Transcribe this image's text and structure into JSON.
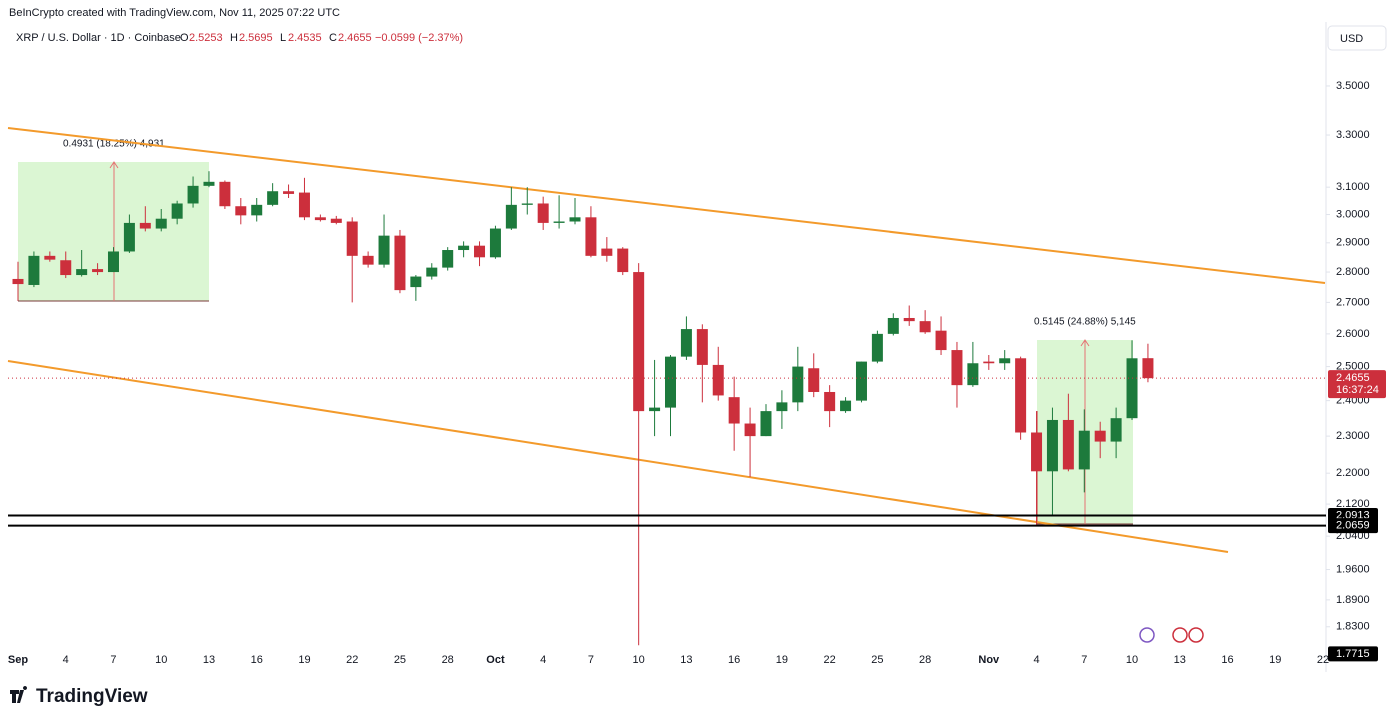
{
  "credit": "BeInCrypto created with TradingView.com, Nov 11, 2025 07:22 UTC",
  "brand": "TradingView",
  "chart_data": {
    "type": "candlestick",
    "title": "XRP / U.S. Dollar · 1D · Coinbase",
    "ohlc_prefixes": [
      "O",
      "H",
      "L",
      "C"
    ],
    "change_label": "−0.0599 (−2.37%)",
    "currency": "USD",
    "countdown": "16:37:24",
    "categories": [
      "Sep",
      null,
      null,
      "4",
      null,
      null,
      "7",
      null,
      null,
      "10",
      null,
      null,
      "13",
      null,
      null,
      "16",
      null,
      null,
      "19",
      null,
      null,
      "22",
      null,
      null,
      "25",
      null,
      null,
      "28",
      null,
      null,
      "Oct",
      null,
      null,
      "4",
      null,
      null,
      "7",
      null,
      null,
      "10",
      null,
      null,
      "13",
      null,
      null,
      "16",
      null,
      null,
      "19",
      null,
      null,
      "22",
      null,
      null,
      "25",
      null,
      null,
      "28",
      null,
      null,
      null,
      "Nov",
      null,
      null,
      "4",
      null,
      null,
      "7",
      null,
      null,
      "10",
      null,
      null,
      "13",
      null,
      null,
      "16",
      null,
      null,
      "19",
      null,
      null,
      "22"
    ],
    "open": [
      2.777,
      2.757,
      2.855,
      2.84,
      2.79,
      2.81,
      2.8,
      2.87,
      2.97,
      2.95,
      2.985,
      3.04,
      3.105,
      3.12,
      3.03,
      2.997,
      3.035,
      3.085,
      3.08,
      2.99,
      2.985,
      2.975,
      2.855,
      2.825,
      2.925,
      2.75,
      2.785,
      2.815,
      2.875,
      2.89,
      2.85,
      2.95,
      3.035,
      3.04,
      2.97,
      2.975,
      2.99,
      2.88,
      2.88,
      2.8,
      2.37,
      2.38,
      2.53,
      2.615,
      2.505,
      2.41,
      2.335,
      2.3,
      2.37,
      2.395,
      2.495,
      2.425,
      2.37,
      2.4,
      2.515,
      2.6,
      2.65,
      2.64,
      2.61,
      2.55,
      2.445,
      2.515,
      2.51,
      2.525,
      2.31,
      2.205,
      2.345,
      2.21,
      2.315,
      2.285,
      2.35,
      2.5253,
      null,
      null,
      null,
      null,
      null,
      null,
      null,
      null,
      null,
      null,
      null
    ],
    "high": [
      2.835,
      2.87,
      2.87,
      2.87,
      2.875,
      2.83,
      2.885,
      3.0,
      3.03,
      3.02,
      3.05,
      3.14,
      3.16,
      3.125,
      3.06,
      3.06,
      3.115,
      3.11,
      3.135,
      3.0,
      2.995,
      2.99,
      2.87,
      3.0,
      2.945,
      2.79,
      2.83,
      2.885,
      2.905,
      2.905,
      2.96,
      3.1,
      3.1,
      3.065,
      3.07,
      3.06,
      3.03,
      2.92,
      2.885,
      2.83,
      2.52,
      2.535,
      2.655,
      2.63,
      2.56,
      2.47,
      2.38,
      2.39,
      2.43,
      2.56,
      2.54,
      2.445,
      2.41,
      2.515,
      2.61,
      2.665,
      2.69,
      2.675,
      2.655,
      2.575,
      2.575,
      2.535,
      2.55,
      2.53,
      2.37,
      2.38,
      2.42,
      2.375,
      2.34,
      2.38,
      2.58,
      2.5695,
      null,
      null,
      null,
      null,
      null,
      null,
      null,
      null,
      null,
      null,
      null
    ],
    "low": [
      2.715,
      2.75,
      2.835,
      2.78,
      2.785,
      2.79,
      2.8,
      2.865,
      2.94,
      2.94,
      2.965,
      3.025,
      3.1,
      3.02,
      2.965,
      2.975,
      3.03,
      3.06,
      2.98,
      2.975,
      2.965,
      2.7,
      2.815,
      2.815,
      2.73,
      2.705,
      2.775,
      2.805,
      2.85,
      2.82,
      2.845,
      2.945,
      3.0,
      2.945,
      2.95,
      2.965,
      2.85,
      2.835,
      2.79,
      1.79,
      2.3,
      2.3,
      2.52,
      2.395,
      2.4,
      2.26,
      2.19,
      2.3,
      2.32,
      2.37,
      2.41,
      2.325,
      2.365,
      2.395,
      2.51,
      2.595,
      2.625,
      2.6,
      2.535,
      2.38,
      2.44,
      2.49,
      2.49,
      2.29,
      2.066,
      2.09,
      2.205,
      2.15,
      2.24,
      2.24,
      2.345,
      2.4535,
      null,
      null,
      null,
      null,
      null,
      null,
      null,
      null,
      null,
      null,
      null
    ],
    "close": [
      2.76,
      2.855,
      2.842,
      2.79,
      2.81,
      2.8,
      2.87,
      2.97,
      2.95,
      2.985,
      3.04,
      3.105,
      3.12,
      3.03,
      2.997,
      3.035,
      3.085,
      3.075,
      2.99,
      2.98,
      2.97,
      2.855,
      2.825,
      2.925,
      2.74,
      2.785,
      2.815,
      2.875,
      2.89,
      2.85,
      2.95,
      3.035,
      3.04,
      2.97,
      2.975,
      2.99,
      2.855,
      2.855,
      2.8,
      2.37,
      2.38,
      2.53,
      2.615,
      2.505,
      2.415,
      2.335,
      2.3,
      2.37,
      2.395,
      2.5,
      2.425,
      2.37,
      2.4,
      2.515,
      2.6,
      2.65,
      2.64,
      2.605,
      2.55,
      2.445,
      2.51,
      2.51,
      2.525,
      2.31,
      2.205,
      2.345,
      2.21,
      2.315,
      2.285,
      2.35,
      2.525,
      2.4655,
      null,
      null,
      null,
      null,
      null,
      null,
      null,
      null,
      null,
      null,
      null
    ],
    "up_color": "#1d7a3c",
    "down_color": "#cc2f3c",
    "log_scale": true,
    "ylim": [
      1.784,
      3.779
    ],
    "yticks": [
      {
        "value": 3.5,
        "label": "3.5000"
      },
      {
        "value": 3.3,
        "label": "3.3000"
      },
      {
        "value": 3.1,
        "label": "3.1000"
      },
      {
        "value": 3.0,
        "label": "3.0000"
      },
      {
        "value": 2.9,
        "label": "2.9000"
      },
      {
        "value": 2.8,
        "label": "2.8000"
      },
      {
        "value": 2.7,
        "label": "2.7000"
      },
      {
        "value": 2.6,
        "label": "2.6000"
      },
      {
        "value": 2.5,
        "label": "2.5000"
      },
      {
        "value": 2.4,
        "label": "2.4000"
      },
      {
        "value": 2.3,
        "label": "2.3000"
      },
      {
        "value": 2.2,
        "label": "2.2000"
      },
      {
        "value": 2.12,
        "label": "2.1200"
      },
      {
        "value": 2.04,
        "label": "2.0400"
      },
      {
        "value": 1.96,
        "label": "1.9600"
      },
      {
        "value": 1.89,
        "label": "1.8900"
      },
      {
        "value": 1.83,
        "label": "1.8300"
      }
    ],
    "levels": [
      2.0913,
      2.0659
    ],
    "low_marker": 1.7715,
    "measurements": [
      "0.4931 (18.25%) 4,931",
      "0.5145 (24.88%) 5,145"
    ]
  }
}
